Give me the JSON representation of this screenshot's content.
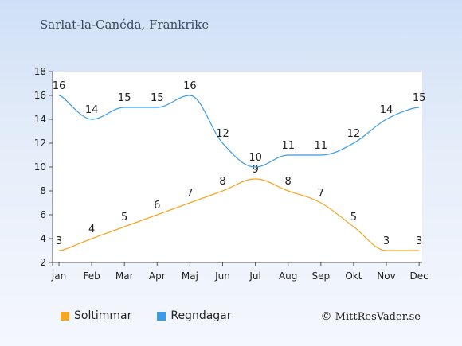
{
  "header": {
    "title": "Sarlat-la-Canéda, Frankrike"
  },
  "credit": {
    "symbol": "©",
    "text": "MittResVader.se"
  },
  "chart_data": {
    "type": "line",
    "title": "Sarlat-la-Canéda, Frankrike",
    "categories": [
      "Jan",
      "Feb",
      "Mar",
      "Apr",
      "Maj",
      "Jun",
      "Jul",
      "Aug",
      "Sep",
      "Okt",
      "Nov",
      "Dec"
    ],
    "ylim": [
      2,
      18
    ],
    "yticks": [
      2,
      4,
      6,
      8,
      10,
      12,
      14,
      16,
      18
    ],
    "grid": false,
    "legend_position": "bottom-left",
    "series": [
      {
        "name": "Soltimmar",
        "color": "#f5a623",
        "values": [
          3,
          4,
          5,
          6,
          7,
          8,
          9,
          8,
          7,
          5,
          3,
          3
        ]
      },
      {
        "name": "Regndagar",
        "color": "#3b9be6",
        "values": [
          16,
          14,
          15,
          15,
          16,
          12,
          10,
          11,
          11,
          12,
          14,
          15
        ]
      }
    ]
  }
}
